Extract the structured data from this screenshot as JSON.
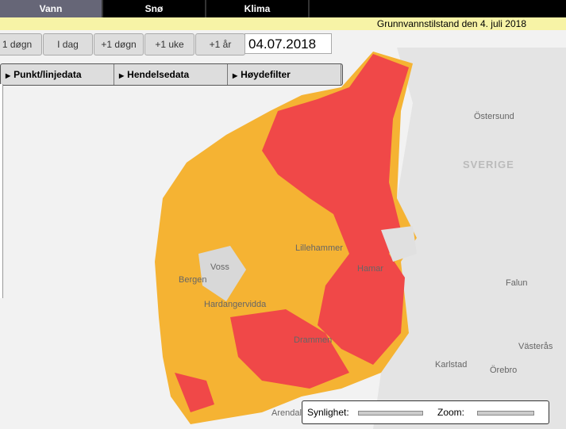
{
  "tabs": [
    "Vann",
    "Snø",
    "Klima"
  ],
  "banner": "Grunnvannstilstand  den 4. juli 2018",
  "nav_buttons": [
    "1 døgn",
    "I dag",
    "+1 døgn",
    "+1 uke",
    "+1 år"
  ],
  "date": "04.07.2018",
  "menu": [
    "Punkt/linjedata",
    "Hendelsedata",
    "Høydefilter"
  ],
  "map_labels": [
    "Östersund",
    "SVERIGE",
    "Lillehammer",
    "Hardangervidda",
    "Bergen",
    "Voss",
    "Hamar",
    "Falun",
    "Drammen",
    "Karlstad",
    "Örebro",
    "Västerås",
    "Arendal"
  ],
  "controls": {
    "visibility": "Synlighet:",
    "zoom": "Zoom:"
  }
}
